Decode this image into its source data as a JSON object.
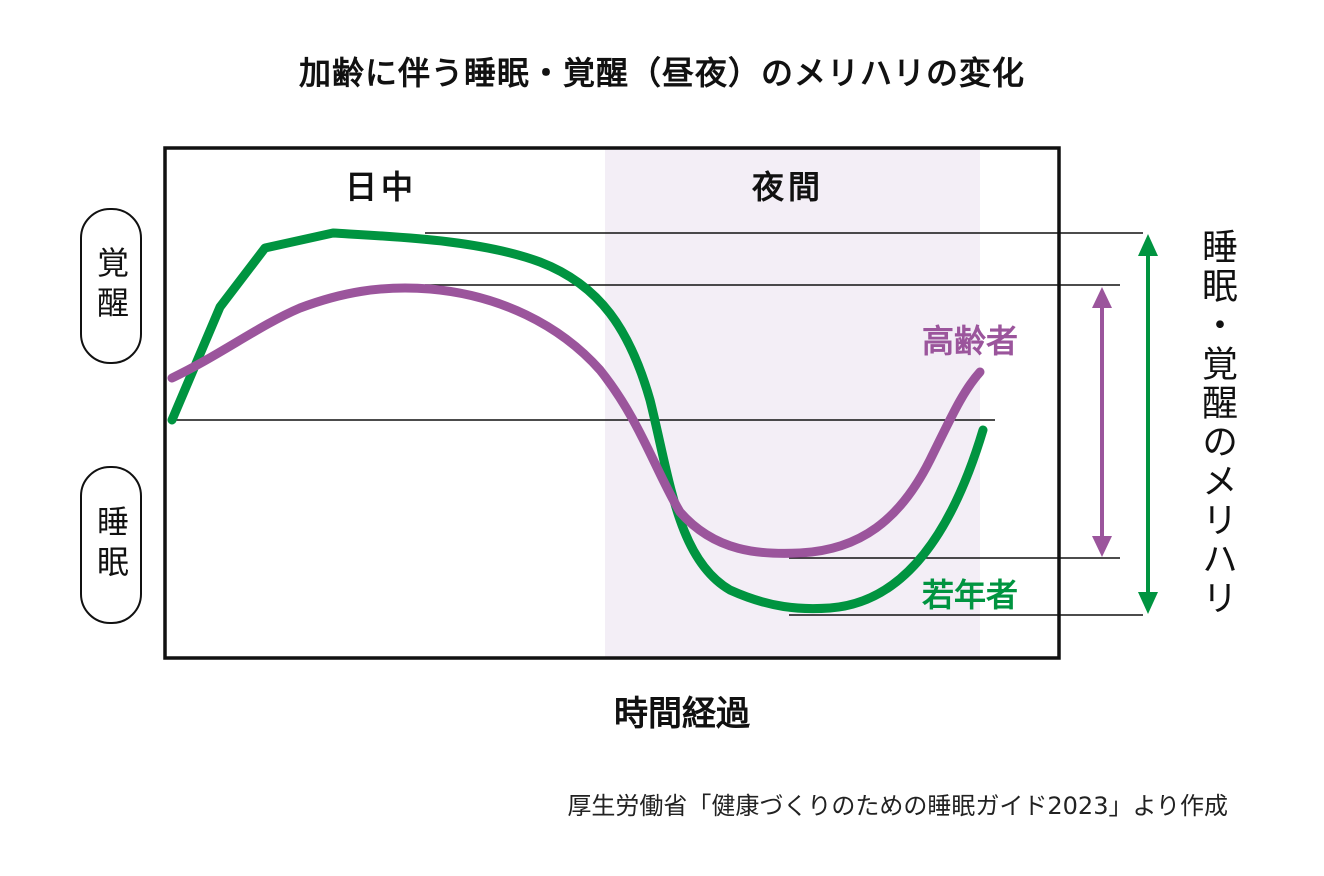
{
  "title": "加齢に伴う睡眠・覚醒（昼夜）のメリハリの変化",
  "periods": {
    "day": "日中",
    "night": "夜間"
  },
  "y_labels": {
    "wake": "覚醒",
    "sleep": "睡眠"
  },
  "x_label": "時間経過",
  "series": [
    {
      "name": "高齢者",
      "color": "#9b559c"
    },
    {
      "name": "若年者",
      "color": "#009440"
    }
  ],
  "amplitude_label": "睡眠・覚醒のメリハリ",
  "night_shading_color": "#f3eef6",
  "source": "厚生労働省「健康づくりのための睡眠ガイド2023」より作成"
}
